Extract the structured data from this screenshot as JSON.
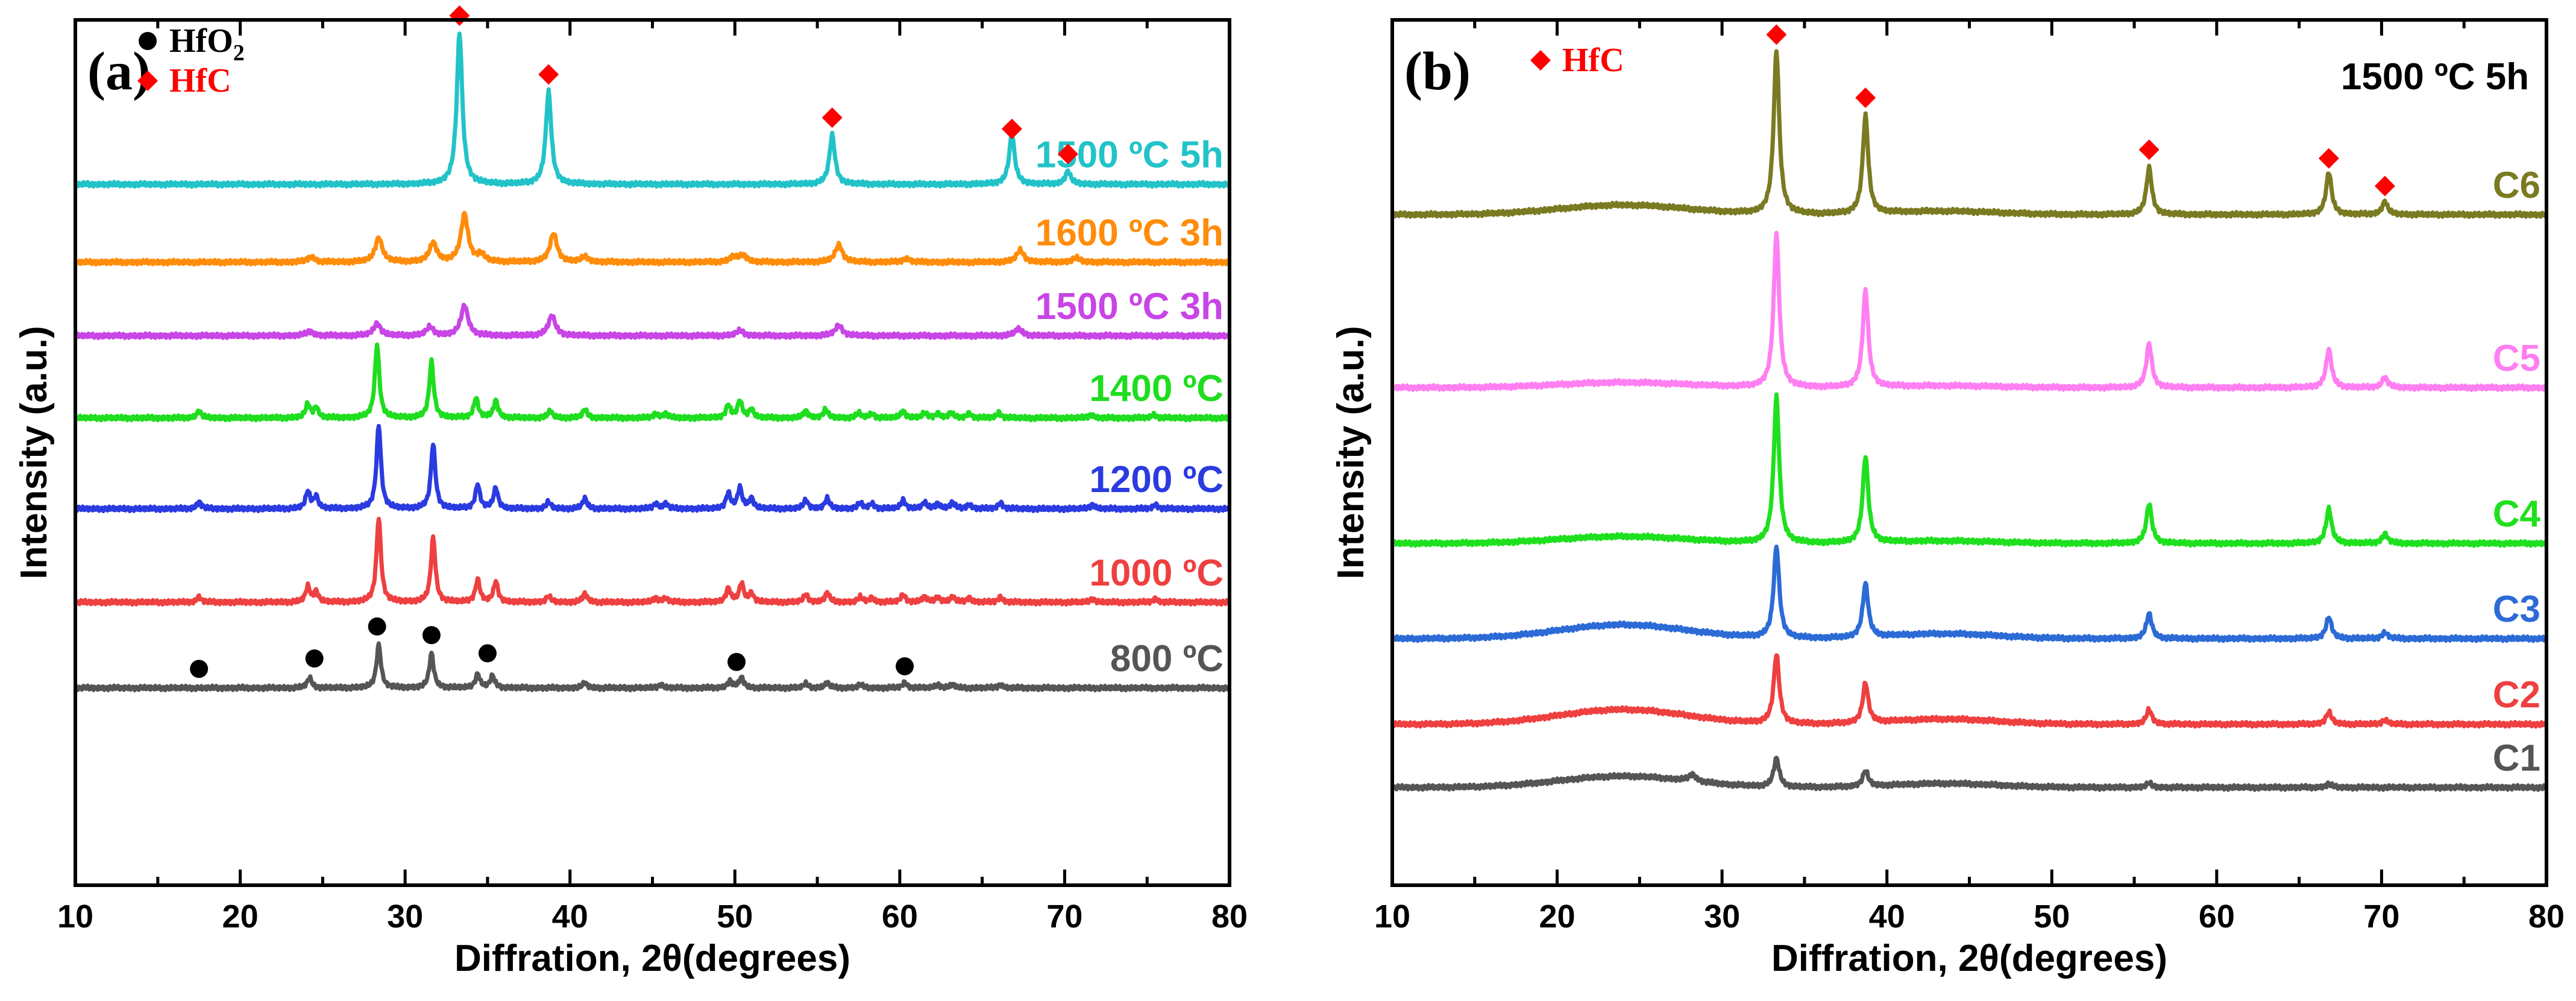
{
  "chart_data": [
    {
      "panel_label": "(a)",
      "type": "line",
      "xlabel": "Diffration, 2θ(degrees)",
      "ylabel": "Intensity (a.u.)",
      "xlim": [
        10,
        80
      ],
      "xticks": [
        10,
        20,
        30,
        40,
        50,
        60,
        70,
        80
      ],
      "legend": [
        {
          "label": "HfO2",
          "text": "HfO",
          "sub": "2",
          "marker": "circle",
          "color": "#000000",
          "text_color": "#000000"
        },
        {
          "label": "HfC",
          "text": "HfC",
          "marker": "diamond",
          "color": "#ff0000",
          "text_color": "#ff0000"
        }
      ],
      "series": [
        {
          "name": "1500 ºC 5h",
          "color": "#22c3c8",
          "baseline_frac": 0.19,
          "peaks": [
            [
              33.3,
              0.175,
              "tall"
            ],
            [
              38.7,
              0.107,
              "tall"
            ],
            [
              55.9,
              0.057,
              "tall"
            ],
            [
              66.8,
              0.058,
              "tall"
            ],
            [
              70.2,
              0.015,
              "tall"
            ]
          ]
        },
        {
          "name": "1600 ºC 3h",
          "color": "#ff8c0a",
          "baseline_frac": 0.28,
          "peaks": [
            [
              24.3,
              0.006,
              "mid"
            ],
            [
              28.4,
              0.028,
              "mid"
            ],
            [
              31.7,
              0.022,
              "mid"
            ],
            [
              33.6,
              0.055,
              "mid"
            ],
            [
              34.6,
              0.008,
              "mid"
            ],
            [
              39.0,
              0.033,
              "mid"
            ],
            [
              40.9,
              0.006,
              "mid"
            ],
            [
              49.9,
              0.006,
              "mid"
            ],
            [
              50.5,
              0.008,
              "mid"
            ],
            [
              56.3,
              0.02,
              "mid"
            ],
            [
              60.4,
              0.004,
              "mid"
            ],
            [
              67.3,
              0.014,
              "mid"
            ],
            [
              70.7,
              0.005,
              "mid"
            ]
          ]
        },
        {
          "name": "1500 ºC 3h",
          "color": "#c845e6",
          "baseline_frac": 0.365,
          "peaks": [
            [
              24.2,
              0.005,
              "mid"
            ],
            [
              28.3,
              0.014,
              "mid"
            ],
            [
              31.5,
              0.01,
              "mid"
            ],
            [
              33.6,
              0.035,
              "mid"
            ],
            [
              38.9,
              0.023,
              "mid"
            ],
            [
              50.3,
              0.006,
              "mid"
            ],
            [
              56.3,
              0.012,
              "mid"
            ],
            [
              67.2,
              0.008,
              "mid"
            ]
          ]
        },
        {
          "name": "1400 ºC",
          "color": "#1fdd1f",
          "baseline_frac": 0.46,
          "peaks": [
            [
              17.5,
              0.008,
              "sharp"
            ],
            [
              24.1,
              0.016,
              "sharp"
            ],
            [
              24.6,
              0.012,
              "sharp"
            ],
            [
              28.3,
              0.085,
              "sharp"
            ],
            [
              31.6,
              0.065,
              "sharp"
            ],
            [
              34.3,
              0.023,
              "sharp"
            ],
            [
              35.5,
              0.02,
              "sharp"
            ],
            [
              38.8,
              0.008,
              "sharp"
            ],
            [
              40.9,
              0.01,
              "sharp"
            ],
            [
              45.2,
              0.005,
              "sharp"
            ],
            [
              45.8,
              0.005,
              "sharp"
            ],
            [
              49.6,
              0.015,
              "sharp"
            ],
            [
              50.3,
              0.02,
              "sharp"
            ],
            [
              51.0,
              0.01,
              "sharp"
            ],
            [
              54.3,
              0.008,
              "sharp"
            ],
            [
              55.5,
              0.01,
              "sharp"
            ],
            [
              57.5,
              0.006,
              "sharp"
            ],
            [
              58.3,
              0.005,
              "sharp"
            ],
            [
              60.2,
              0.008,
              "sharp"
            ],
            [
              61.5,
              0.006,
              "sharp"
            ],
            [
              62.3,
              0.005,
              "sharp"
            ],
            [
              63.1,
              0.006,
              "sharp"
            ],
            [
              64.2,
              0.005,
              "sharp"
            ],
            [
              66.0,
              0.006,
              "sharp"
            ],
            [
              71.6,
              0.004,
              "sharp"
            ],
            [
              75.4,
              0.004,
              "sharp"
            ]
          ]
        },
        {
          "name": "1200 ºC",
          "color": "#2a3be0",
          "baseline_frac": 0.565,
          "peaks": [
            [
              17.5,
              0.008,
              "sharp"
            ],
            [
              24.1,
              0.02,
              "sharp"
            ],
            [
              24.6,
              0.014,
              "sharp"
            ],
            [
              28.4,
              0.097,
              "sharp"
            ],
            [
              31.7,
              0.075,
              "sharp"
            ],
            [
              34.4,
              0.028,
              "sharp"
            ],
            [
              35.5,
              0.024,
              "sharp"
            ],
            [
              38.7,
              0.008,
              "sharp"
            ],
            [
              40.9,
              0.012,
              "sharp"
            ],
            [
              45.2,
              0.006,
              "sharp"
            ],
            [
              45.8,
              0.006,
              "sharp"
            ],
            [
              49.6,
              0.018,
              "sharp"
            ],
            [
              50.3,
              0.024,
              "sharp"
            ],
            [
              51.0,
              0.012,
              "sharp"
            ],
            [
              54.3,
              0.01,
              "sharp"
            ],
            [
              55.6,
              0.012,
              "sharp"
            ],
            [
              57.6,
              0.007,
              "sharp"
            ],
            [
              58.3,
              0.006,
              "sharp"
            ],
            [
              60.2,
              0.01,
              "sharp"
            ],
            [
              61.5,
              0.007,
              "sharp"
            ],
            [
              62.3,
              0.006,
              "sharp"
            ],
            [
              63.2,
              0.007,
              "sharp"
            ],
            [
              64.2,
              0.005,
              "sharp"
            ],
            [
              66.1,
              0.007,
              "sharp"
            ],
            [
              71.7,
              0.005,
              "sharp"
            ],
            [
              75.5,
              0.005,
              "sharp"
            ]
          ]
        },
        {
          "name": "1000 ºC",
          "color": "#ee4040",
          "baseline_frac": 0.673,
          "peaks": [
            [
              17.5,
              0.006,
              "sharp"
            ],
            [
              24.1,
              0.018,
              "sharp"
            ],
            [
              24.6,
              0.012,
              "sharp"
            ],
            [
              28.4,
              0.098,
              "sharp"
            ],
            [
              31.7,
              0.075,
              "sharp"
            ],
            [
              34.4,
              0.026,
              "sharp"
            ],
            [
              35.5,
              0.024,
              "sharp"
            ],
            [
              38.7,
              0.007,
              "sharp"
            ],
            [
              40.9,
              0.01,
              "sharp"
            ],
            [
              45.2,
              0.005,
              "sharp"
            ],
            [
              45.8,
              0.005,
              "sharp"
            ],
            [
              49.6,
              0.016,
              "sharp"
            ],
            [
              50.4,
              0.022,
              "sharp"
            ],
            [
              51.0,
              0.01,
              "sharp"
            ],
            [
              54.3,
              0.009,
              "sharp"
            ],
            [
              55.6,
              0.011,
              "sharp"
            ],
            [
              57.6,
              0.006,
              "sharp"
            ],
            [
              58.3,
              0.005,
              "sharp"
            ],
            [
              60.2,
              0.009,
              "sharp"
            ],
            [
              61.5,
              0.006,
              "sharp"
            ],
            [
              62.3,
              0.006,
              "sharp"
            ],
            [
              63.2,
              0.006,
              "sharp"
            ],
            [
              64.2,
              0.005,
              "sharp"
            ],
            [
              66.1,
              0.006,
              "sharp"
            ],
            [
              71.7,
              0.004,
              "sharp"
            ],
            [
              75.5,
              0.004,
              "sharp"
            ]
          ]
        },
        {
          "name": "800 ºC",
          "color": "#555555",
          "baseline_frac": 0.772,
          "peaks": [
            [
              24.2,
              0.012,
              "sharp"
            ],
            [
              28.4,
              0.05,
              "sharp"
            ],
            [
              31.6,
              0.04,
              "sharp"
            ],
            [
              34.4,
              0.016,
              "sharp"
            ],
            [
              35.3,
              0.014,
              "sharp"
            ],
            [
              40.9,
              0.006,
              "sharp"
            ],
            [
              45.5,
              0.004,
              "sharp"
            ],
            [
              49.7,
              0.008,
              "sharp"
            ],
            [
              50.4,
              0.012,
              "sharp"
            ],
            [
              54.3,
              0.005,
              "sharp"
            ],
            [
              55.6,
              0.006,
              "sharp"
            ],
            [
              57.6,
              0.004,
              "sharp"
            ],
            [
              60.3,
              0.006,
              "sharp"
            ],
            [
              62.3,
              0.004,
              "sharp"
            ],
            [
              63.2,
              0.004,
              "sharp"
            ],
            [
              66.1,
              0.004,
              "sharp"
            ]
          ]
        }
      ],
      "markers": [
        {
          "shape": "circle",
          "x": 17.5,
          "series": "800 ºC",
          "above_frac": 0.022
        },
        {
          "shape": "circle",
          "x": 24.5,
          "series": "800 ºC",
          "above_frac": 0.034
        },
        {
          "shape": "circle",
          "x": 28.3,
          "series": "800 ºC",
          "above_frac": 0.071
        },
        {
          "shape": "circle",
          "x": 31.6,
          "series": "800 ºC",
          "above_frac": 0.061
        },
        {
          "shape": "circle",
          "x": 35.0,
          "series": "800 ºC",
          "above_frac": 0.04
        },
        {
          "shape": "circle",
          "x": 50.1,
          "series": "800 ºC",
          "above_frac": 0.03
        },
        {
          "shape": "circle",
          "x": 60.3,
          "series": "800 ºC",
          "above_frac": 0.025
        },
        {
          "shape": "diamond",
          "x": 33.3,
          "series": "1500 ºC 5h",
          "above_frac": 0.195
        },
        {
          "shape": "diamond",
          "x": 38.7,
          "series": "1500 ºC 5h",
          "above_frac": 0.127
        },
        {
          "shape": "diamond",
          "x": 55.9,
          "series": "1500 ºC 5h",
          "above_frac": 0.077
        },
        {
          "shape": "diamond",
          "x": 66.8,
          "series": "1500 ºC 5h",
          "above_frac": 0.064
        },
        {
          "shape": "diamond",
          "x": 70.2,
          "series": "1500 ºC 5h",
          "above_frac": 0.035
        }
      ]
    },
    {
      "panel_label": "(b)",
      "type": "line",
      "xlabel": "Diffration, 2θ(degrees)",
      "ylabel": "Intensity (a.u.)",
      "condition_label": "1500 ºC 5h",
      "xlim": [
        10,
        80
      ],
      "xticks": [
        10,
        20,
        30,
        40,
        50,
        60,
        70,
        80
      ],
      "legend": [
        {
          "label": "HfC",
          "text": "HfC",
          "marker": "diamond",
          "color": "#ff0000",
          "text_color": "#ff0000"
        }
      ],
      "series": [
        {
          "name": "C6",
          "color": "#7a7a22",
          "baseline_frac": 0.225,
          "hump": 0.011,
          "peaks": [
            [
              33.3,
              0.189,
              "tall"
            ],
            [
              38.7,
              0.113,
              "tall"
            ],
            [
              55.9,
              0.054,
              "tall"
            ],
            [
              66.8,
              0.049,
              "tall"
            ],
            [
              70.2,
              0.015,
              "tall"
            ]
          ]
        },
        {
          "name": "C5",
          "color": "#ff7ff2",
          "baseline_frac": 0.425,
          "hump": 0.006,
          "peaks": [
            [
              33.3,
              0.178,
              "tall"
            ],
            [
              38.7,
              0.112,
              "tall"
            ],
            [
              55.9,
              0.051,
              "tall"
            ],
            [
              66.8,
              0.044,
              "tall"
            ],
            [
              70.2,
              0.012,
              "tall"
            ]
          ]
        },
        {
          "name": "C4",
          "color": "#1fe01f",
          "baseline_frac": 0.605,
          "hump": 0.008,
          "peaks": [
            [
              33.3,
              0.169,
              "tall"
            ],
            [
              38.7,
              0.1,
              "tall"
            ],
            [
              55.9,
              0.046,
              "tall"
            ],
            [
              66.8,
              0.04,
              "tall"
            ],
            [
              70.2,
              0.011,
              "tall"
            ]
          ]
        },
        {
          "name": "C3",
          "color": "#2c6bd6",
          "baseline_frac": 0.715,
          "hump": 0.016,
          "peaks": [
            [
              33.3,
              0.106,
              "tall"
            ],
            [
              38.7,
              0.062,
              "tall"
            ],
            [
              55.9,
              0.029,
              "tall"
            ],
            [
              66.8,
              0.025,
              "tall"
            ],
            [
              70.2,
              0.007,
              "tall"
            ]
          ]
        },
        {
          "name": "C2",
          "color": "#ee4040",
          "baseline_frac": 0.814,
          "hump": 0.017,
          "peaks": [
            [
              33.3,
              0.08,
              "tall"
            ],
            [
              38.7,
              0.046,
              "tall"
            ],
            [
              55.9,
              0.017,
              "tall"
            ],
            [
              66.8,
              0.014,
              "tall"
            ],
            [
              70.2,
              0.005,
              "tall"
            ]
          ]
        },
        {
          "name": "C1",
          "color": "#555555",
          "baseline_frac": 0.887,
          "hump": 0.013,
          "peaks": [
            [
              28.2,
              0.008,
              "mid"
            ],
            [
              33.3,
              0.033,
              "tall"
            ],
            [
              38.7,
              0.018,
              "tall"
            ],
            [
              55.9,
              0.005,
              "tall"
            ],
            [
              66.8,
              0.004,
              "tall"
            ]
          ]
        }
      ],
      "markers": [
        {
          "shape": "diamond",
          "x": 33.3,
          "series": "C6",
          "above_frac": 0.208
        },
        {
          "shape": "diamond",
          "x": 38.7,
          "series": "C6",
          "above_frac": 0.135
        },
        {
          "shape": "diamond",
          "x": 55.9,
          "series": "C6",
          "above_frac": 0.075
        },
        {
          "shape": "diamond",
          "x": 66.8,
          "series": "C6",
          "above_frac": 0.065
        },
        {
          "shape": "diamond",
          "x": 70.2,
          "series": "C6",
          "above_frac": 0.033
        }
      ]
    }
  ]
}
